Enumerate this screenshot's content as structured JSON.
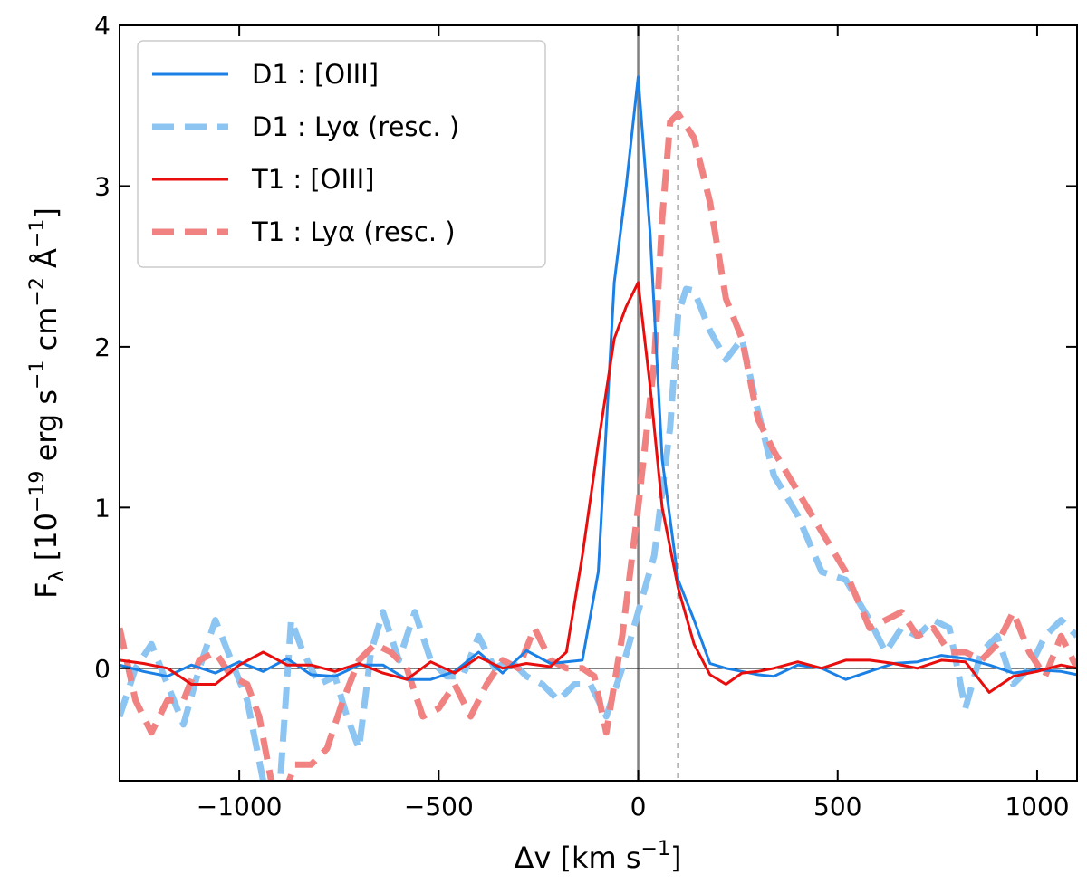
{
  "chart_data": {
    "type": "line",
    "xlabel": "Δv [km s",
    "xlabel_sup": "−1",
    "xlabel_end": "]",
    "ylabel": "F",
    "ylabel_sub": "λ",
    "ylabel_mid": " [10",
    "ylabel_sup1": "−19",
    "ylabel_part2": " erg s",
    "ylabel_sup2": "−1",
    "ylabel_part3": " cm",
    "ylabel_sup3": "−2",
    "ylabel_part4": " Å",
    "ylabel_sup4": "−1",
    "ylabel_end": "]",
    "xlim": [
      -1300,
      1100
    ],
    "ylim": [
      -0.7,
      4.0
    ],
    "xticks": [
      -1000,
      -500,
      0,
      500,
      1000
    ],
    "xtick_labels": [
      "−1000",
      "−500",
      "0",
      "500",
      "1000"
    ],
    "yticks": [
      0,
      1,
      2,
      3,
      4
    ],
    "ytick_labels": [
      "0",
      "1",
      "2",
      "3",
      "4"
    ],
    "grid": false,
    "legend_position": "top-left",
    "reference_lines": [
      {
        "x": 0,
        "style": "solid",
        "color": "#808080"
      },
      {
        "x": 100,
        "style": "dashed",
        "color": "#808080"
      },
      {
        "y": 0,
        "style": "solid",
        "color": "#000000"
      }
    ],
    "series": [
      {
        "name": "D1 : [OIII]",
        "color": "#1a80e6",
        "style": "solid",
        "opacity": 1,
        "x": [
          -1300,
          -1240,
          -1180,
          -1120,
          -1060,
          -1000,
          -940,
          -880,
          -820,
          -760,
          -700,
          -640,
          -580,
          -520,
          -460,
          -400,
          -340,
          -280,
          -220,
          -180,
          -140,
          -100,
          -60,
          -30,
          0,
          30,
          60,
          100,
          140,
          180,
          220,
          260,
          300,
          340,
          400,
          460,
          520,
          580,
          640,
          700,
          760,
          820,
          880,
          940,
          1000,
          1060,
          1100
        ],
        "y": [
          0.02,
          -0.02,
          -0.05,
          0.02,
          -0.03,
          0.04,
          -0.02,
          0.06,
          -0.04,
          -0.05,
          0.02,
          0.02,
          -0.07,
          -0.07,
          -0.02,
          0.1,
          -0.03,
          0.11,
          0.03,
          0.04,
          0.05,
          0.6,
          2.4,
          3.0,
          3.68,
          2.7,
          1.3,
          0.55,
          0.3,
          0.03,
          0.0,
          -0.02,
          -0.04,
          -0.05,
          0.02,
          0.0,
          -0.07,
          -0.02,
          0.03,
          0.04,
          0.08,
          0.06,
          0.02,
          -0.03,
          -0.01,
          -0.02,
          -0.04
        ]
      },
      {
        "name": "D1 : Lyα (resc. )",
        "color": "#8cc4f2",
        "style": "dashed",
        "opacity": 1,
        "x": [
          -1300,
          -1260,
          -1220,
          -1180,
          -1140,
          -1100,
          -1060,
          -1020,
          -980,
          -940,
          -900,
          -870,
          -840,
          -800,
          -760,
          -730,
          -700,
          -670,
          -640,
          -600,
          -560,
          -520,
          -480,
          -440,
          -400,
          -360,
          -320,
          -280,
          -240,
          -200,
          -160,
          -120,
          -80,
          -40,
          0,
          40,
          80,
          100,
          120,
          140,
          180,
          220,
          260,
          300,
          340,
          400,
          460,
          520,
          580,
          620,
          660,
          700,
          740,
          780,
          820,
          860,
          900,
          940,
          980,
          1020,
          1060,
          1100
        ],
        "y": [
          -0.3,
          0.0,
          0.15,
          -0.1,
          -0.35,
          0.0,
          0.3,
          0.05,
          -0.2,
          -0.7,
          -0.8,
          0.3,
          0.1,
          -0.1,
          -0.05,
          -0.3,
          -0.5,
          0.1,
          0.35,
          0.05,
          0.35,
          0.05,
          -0.05,
          -0.05,
          0.2,
          0.0,
          0.05,
          -0.05,
          -0.1,
          -0.2,
          -0.1,
          -0.1,
          -0.3,
          0.0,
          0.35,
          0.7,
          1.5,
          2.2,
          2.36,
          2.35,
          2.1,
          1.92,
          2.05,
          1.6,
          1.2,
          0.95,
          0.6,
          0.55,
          0.3,
          0.1,
          0.25,
          0.2,
          0.3,
          0.25,
          -0.25,
          0.1,
          0.2,
          -0.1,
          0.0,
          0.2,
          0.3,
          0.2
        ]
      },
      {
        "name": "T1 : [OIII]",
        "color": "#e80e0e",
        "style": "solid",
        "opacity": 1,
        "x": [
          -1300,
          -1240,
          -1180,
          -1120,
          -1060,
          -1000,
          -940,
          -880,
          -820,
          -760,
          -700,
          -640,
          -580,
          -520,
          -460,
          -400,
          -340,
          -280,
          -220,
          -180,
          -140,
          -100,
          -60,
          -30,
          0,
          30,
          60,
          100,
          140,
          180,
          220,
          260,
          300,
          340,
          400,
          460,
          520,
          580,
          640,
          700,
          760,
          820,
          880,
          940,
          1000,
          1060,
          1100
        ],
        "y": [
          0.05,
          0.03,
          0.0,
          -0.1,
          -0.1,
          0.02,
          0.1,
          0.02,
          0.02,
          -0.02,
          0.03,
          -0.03,
          -0.07,
          0.04,
          -0.03,
          0.07,
          0.0,
          0.03,
          0.01,
          0.1,
          0.7,
          1.4,
          2.05,
          2.25,
          2.4,
          1.75,
          1.0,
          0.5,
          0.15,
          -0.04,
          -0.1,
          -0.03,
          -0.02,
          0.0,
          0.04,
          0.0,
          0.05,
          0.05,
          0.03,
          0.0,
          0.05,
          0.04,
          -0.15,
          -0.05,
          -0.02,
          0.02,
          0.0
        ]
      },
      {
        "name": "T1 : Lyα (resc. )",
        "color": "#f08282",
        "style": "dashed",
        "opacity": 1,
        "x": [
          -1300,
          -1260,
          -1220,
          -1180,
          -1140,
          -1100,
          -1060,
          -1020,
          -980,
          -950,
          -920,
          -890,
          -860,
          -820,
          -780,
          -740,
          -700,
          -660,
          -620,
          -580,
          -540,
          -500,
          -460,
          -420,
          -380,
          -340,
          -300,
          -260,
          -220,
          -180,
          -140,
          -110,
          -80,
          -40,
          0,
          40,
          60,
          80,
          100,
          140,
          180,
          220,
          260,
          300,
          340,
          400,
          460,
          520,
          580,
          620,
          660,
          700,
          740,
          780,
          820,
          860,
          900,
          940,
          980,
          1020,
          1060,
          1100
        ],
        "y": [
          0.25,
          -0.2,
          -0.4,
          -0.2,
          -0.2,
          0.05,
          0.1,
          -0.05,
          -0.1,
          -0.3,
          -0.7,
          -0.8,
          -0.6,
          -0.6,
          -0.5,
          -0.2,
          0.05,
          0.15,
          0.1,
          0.0,
          -0.3,
          -0.25,
          -0.1,
          -0.3,
          -0.1,
          0.05,
          0.0,
          0.25,
          0.05,
          0.0,
          0.0,
          -0.05,
          -0.4,
          0.2,
          1.0,
          1.9,
          2.8,
          3.4,
          3.45,
          3.3,
          2.9,
          2.3,
          2.05,
          1.55,
          1.35,
          1.1,
          0.85,
          0.6,
          0.25,
          0.3,
          0.35,
          0.2,
          0.25,
          0.1,
          0.1,
          0.05,
          0.15,
          0.35,
          0.1,
          -0.05,
          0.2,
          0.0
        ]
      }
    ]
  }
}
